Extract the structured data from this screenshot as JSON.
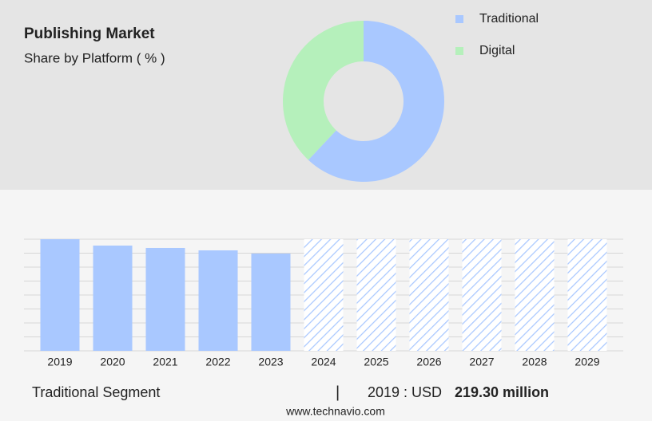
{
  "header": {
    "title": "Publishing Market",
    "subtitle": "Share by Platform ( % )"
  },
  "chart_data": [
    {
      "type": "donut",
      "categories": [
        "Traditional",
        "Digital"
      ],
      "values": [
        62,
        38
      ],
      "colors": [
        "#a9c8ff",
        "#b5f0bb"
      ],
      "legend": "top-right"
    },
    {
      "type": "bar",
      "categories": [
        "2019",
        "2020",
        "2021",
        "2022",
        "2023",
        "2024",
        "2025",
        "2026",
        "2027",
        "2028",
        "2029"
      ],
      "values": [
        219.3,
        206.8,
        202.1,
        197.4,
        191.1,
        null,
        null,
        null,
        null,
        null,
        null
      ],
      "color": "#a9c8ff",
      "ylim": [
        0,
        219.3
      ],
      "grid": true
    }
  ],
  "footer": {
    "segment": "Traditional Segment",
    "separator": "|",
    "year_label": "2019 : USD",
    "value_label": "219.30 million",
    "source": "www.technavio.com"
  }
}
